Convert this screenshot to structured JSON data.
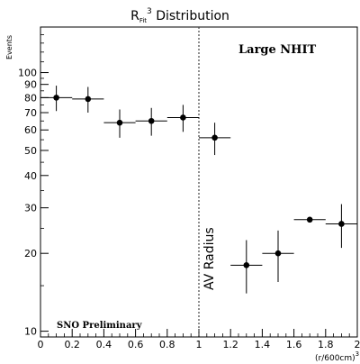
{
  "chart_data": {
    "type": "scatter",
    "title": "R",
    "title_subscript": "Fit",
    "title_superscript": "3",
    "title_rest": " Distribution",
    "ylabel": "Events",
    "xlabel": "(r/600cm)",
    "xlabel_superscript": "3",
    "annotation_large": "Large NHIT",
    "annotation_prelim": "SNO Preliminary",
    "annotation_av": "AV Radius",
    "av_radius_x": 1.0,
    "xlim": [
      0,
      2
    ],
    "ylim": [
      9.5,
      150
    ],
    "yscale": "log",
    "x_ticks": [
      0,
      0.2,
      0.4,
      0.6,
      0.8,
      1,
      1.2,
      1.4,
      1.6,
      1.8,
      2
    ],
    "x_tick_labels": [
      "0",
      "0.2",
      "0.4",
      "0.6",
      "0.8",
      "1",
      "1.2",
      "1.4",
      "1.6",
      "1.8",
      "2"
    ],
    "y_tick_labels": [
      "10",
      "20",
      "30",
      "40",
      "50",
      "60",
      "70",
      "80",
      "90",
      "100"
    ],
    "y_ticks": [
      10,
      20,
      30,
      40,
      50,
      60,
      70,
      80,
      90,
      100
    ],
    "series": [
      {
        "points": [
          {
            "x": 0.1,
            "y": 80,
            "xerr": 0.1,
            "ylo": 71,
            "yhi": 89
          },
          {
            "x": 0.3,
            "y": 79,
            "xerr": 0.1,
            "ylo": 70,
            "yhi": 88
          },
          {
            "x": 0.5,
            "y": 64,
            "xerr": 0.1,
            "ylo": 56,
            "yhi": 72
          },
          {
            "x": 0.7,
            "y": 65,
            "xerr": 0.1,
            "ylo": 57,
            "yhi": 73
          },
          {
            "x": 0.9,
            "y": 67,
            "xerr": 0.1,
            "ylo": 59,
            "yhi": 75
          },
          {
            "x": 1.1,
            "y": 56,
            "xerr": 0.1,
            "ylo": 48,
            "yhi": 64
          },
          {
            "x": 1.3,
            "y": 18,
            "xerr": 0.1,
            "ylo": 14,
            "yhi": 22.5
          },
          {
            "x": 1.5,
            "y": 20,
            "xerr": 0.1,
            "ylo": 15.5,
            "yhi": 24.5
          },
          {
            "x": 1.7,
            "y": 27,
            "xerr": 0.1,
            "ylo": 26.5,
            "yhi": 27.5
          },
          {
            "x": 1.9,
            "y": 26,
            "xerr": 0.1,
            "ylo": 21,
            "yhi": 31
          }
        ]
      }
    ],
    "grid": false,
    "legend": "none"
  }
}
